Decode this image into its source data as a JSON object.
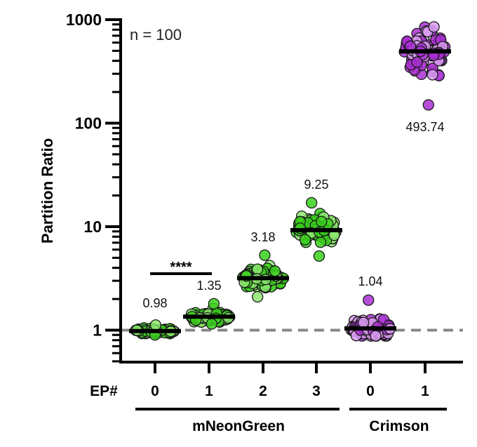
{
  "chart_data": {
    "type": "scatter",
    "title": "",
    "ylabel": "Partition Ratio",
    "xlabel": "EP#",
    "yscale": "log",
    "ylim": [
      0.5,
      1000
    ],
    "yticks": [
      1,
      10,
      100,
      1000
    ],
    "ytick_labels": [
      "1",
      "10",
      "100",
      "1000"
    ],
    "annotation": "n = 100",
    "reference_line": {
      "y": 1,
      "style": "dashed",
      "color": "#888888"
    },
    "significance": {
      "label": "****",
      "between": [
        0,
        1
      ]
    },
    "groups": [
      {
        "name": "mNeonGreen",
        "categories": [
          0,
          1,
          2,
          3
        ]
      },
      {
        "name": "Crimson",
        "categories": [
          4,
          5
        ]
      }
    ],
    "categories": [
      "0",
      "1",
      "2",
      "3",
      "0",
      "1"
    ],
    "series": [
      {
        "group": "mNeonGreen",
        "ep": "0",
        "median": 0.98,
        "median_label": "0.98",
        "color": "#2ecc0a",
        "range": [
          0.9,
          1.12
        ]
      },
      {
        "group": "mNeonGreen",
        "ep": "1",
        "median": 1.35,
        "median_label": "1.35",
        "color": "#2ecc0a",
        "range": [
          1.15,
          1.8
        ]
      },
      {
        "group": "mNeonGreen",
        "ep": "2",
        "median": 3.18,
        "median_label": "3.18",
        "color": "#2ecc0a",
        "range": [
          2.1,
          5.3
        ]
      },
      {
        "group": "mNeonGreen",
        "ep": "3",
        "median": 9.25,
        "median_label": "9.25",
        "color": "#2ecc0a",
        "range": [
          5.2,
          17
        ]
      },
      {
        "group": "Crimson",
        "ep": "0",
        "median": 1.04,
        "median_label": "1.04",
        "color": "#b01cd6",
        "range": [
          0.88,
          1.95
        ]
      },
      {
        "group": "Crimson",
        "ep": "1",
        "median": 493.74,
        "median_label": "493.74",
        "color": "#a81ed0",
        "range": [
          150,
          850
        ]
      }
    ],
    "colors": {
      "green_fill": "#39d01c",
      "green_fill_light": "#8de870",
      "purple_fill": "#a92fd2",
      "purple_fill_light": "#dc9ef2",
      "axis": "#000000",
      "median_bar": "#000000"
    }
  }
}
